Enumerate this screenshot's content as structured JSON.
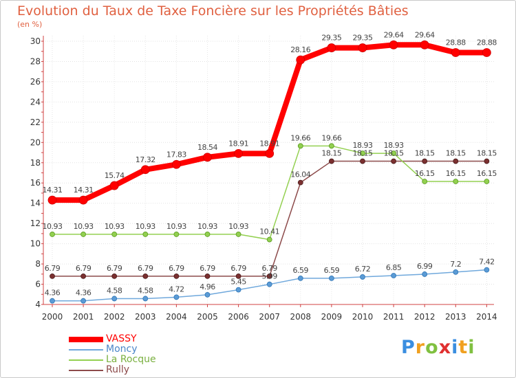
{
  "chart_data": {
    "type": "line",
    "title": "Evolution du Taux de Taxe Foncière sur les Propriétés Bâties",
    "ylabel": "(en %)",
    "xlabel": "",
    "categories": [
      "2000",
      "2001",
      "2002",
      "2003",
      "2004",
      "2005",
      "2006",
      "2007",
      "2008",
      "2009",
      "2010",
      "2011",
      "2012",
      "2013",
      "2014"
    ],
    "ylim": [
      4,
      30
    ],
    "yticks": [
      4,
      6,
      8,
      10,
      12,
      14,
      16,
      18,
      20,
      22,
      24,
      26,
      28,
      30
    ],
    "series": [
      {
        "name": "VASSY",
        "color": "#ff0000",
        "values": [
          14.31,
          14.31,
          15.74,
          17.32,
          17.83,
          18.54,
          18.91,
          18.91,
          28.16,
          29.35,
          29.35,
          29.64,
          29.64,
          28.88,
          28.88
        ],
        "labels": [
          "14.31",
          "14.31",
          "15.74",
          "17.32",
          "17.83",
          "18.54",
          "18.91",
          "18.91",
          "28.16",
          "29.35",
          "29.35",
          "29.64",
          "29.64",
          "28.88",
          "28.88"
        ]
      },
      {
        "name": "Moncy",
        "color": "#6fa8dc",
        "values": [
          4.36,
          4.36,
          4.58,
          4.58,
          4.72,
          4.96,
          5.45,
          5.99,
          6.59,
          6.59,
          6.72,
          6.85,
          6.99,
          7.2,
          7.42
        ],
        "labels": [
          "4.36",
          "4.36",
          "4.58",
          "4.58",
          "4.72",
          "4.96",
          "5.45",
          "5.99",
          "6.59",
          "6.59",
          "6.72",
          "6.85",
          "6.99",
          "7.2",
          "7.42"
        ]
      },
      {
        "name": "La Rocque",
        "color": "#93d050",
        "values": [
          10.93,
          10.93,
          10.93,
          10.93,
          10.93,
          10.93,
          10.93,
          10.41,
          19.66,
          19.66,
          18.93,
          18.93,
          16.15,
          16.15,
          16.15
        ],
        "labels": [
          "10.93",
          "10.93",
          "10.93",
          "10.93",
          "10.93",
          "10.93",
          "10.93",
          "10.41",
          "19.66",
          "19.66",
          "18.93",
          "18.93",
          "16.15",
          "16.15",
          "16.15"
        ]
      },
      {
        "name": "Rully",
        "color": "#8c4a4a",
        "values": [
          6.79,
          6.79,
          6.79,
          6.79,
          6.79,
          6.79,
          6.79,
          6.79,
          16.04,
          18.15,
          18.15,
          18.15,
          18.15,
          18.15,
          18.15
        ],
        "labels": [
          "6.79",
          "6.79",
          "6.79",
          "6.79",
          "6.79",
          "6.79",
          "6.79",
          "6.79",
          "16.04",
          "18.15",
          "18.15",
          "18.15",
          "18.15",
          "18.15",
          "18.15"
        ]
      }
    ],
    "legend": "bottom-left"
  },
  "brand": {
    "logo_text": "Proxiti"
  }
}
